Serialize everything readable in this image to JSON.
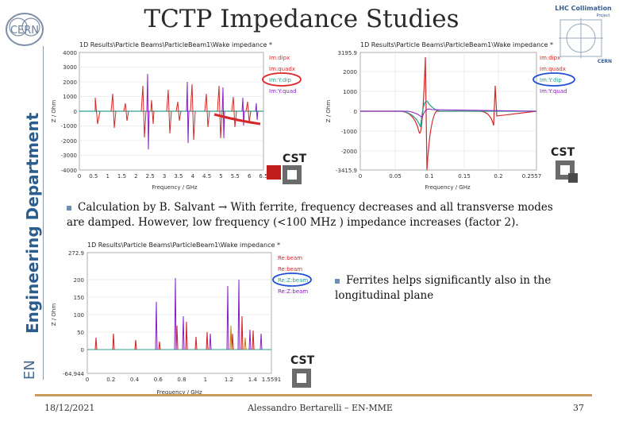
{
  "title": "TCTP Impedance Studies",
  "side_label": "Engineering Department",
  "en_label": "EN",
  "logos": {
    "cern": "CERN",
    "lhc_line1": "LHC Collimation",
    "lhc_line2": "Project",
    "lhc_small": "CERN"
  },
  "plot1": {
    "header": "1D Results\\Particle Beams\\ParticleBeam1\\Wake impedance *",
    "y_ticks": [
      "4000",
      "3000",
      "2000",
      "1000",
      "0",
      "-1000",
      "-2000",
      "-3000",
      "-4000"
    ],
    "x_ticks": [
      "0",
      "0.5",
      "1",
      "1.5",
      "2",
      "2.5",
      "3",
      "3.5",
      "4",
      "4.5",
      "5",
      "5.5",
      "6",
      "6.5"
    ],
    "ylabel": "Z / Ohm",
    "xlabel": "Frequency / GHz",
    "legend": [
      "Im:dipx",
      "Im:quadx",
      "Im:Y:dip",
      "Im:Y:quad"
    ],
    "cst": "CST"
  },
  "plot2": {
    "header": "1D Results\\Particle Beams\\ParticleBeam1\\Wake impedance *",
    "y_ticks": [
      "3195.9",
      "2000",
      "1000",
      "0",
      "-1000",
      "-2000",
      "-3415.9"
    ],
    "x_ticks": [
      "0",
      "0.05",
      "0.1",
      "0.15",
      "0.2",
      "0.2557"
    ],
    "ylabel": "Z / Ohm",
    "xlabel": "Frequency / GHz",
    "legend": [
      "Im:dipx",
      "Im:quadx",
      "Im:Y:dip",
      "Im:Y:quad"
    ],
    "cst": "CST"
  },
  "plot3": {
    "header": "1D Results\\Particle Beams\\ParticleBeam1\\Wake impedance *",
    "y_ticks": [
      "272.9",
      "200",
      "150",
      "100",
      "50",
      "0",
      "-64.944"
    ],
    "x_ticks": [
      "0",
      "0.2",
      "0.4",
      "0.6",
      "0.8",
      "1",
      "1.2",
      "1.4",
      "1.5591"
    ],
    "ylabel": "Z / Ohm",
    "xlabel": "Frequency / GHz",
    "legend": [
      "Re:beam",
      "Re:beam",
      "Re:Z:beam",
      "Re:Z:beam"
    ],
    "cst": "CST"
  },
  "bullet1": "Calculation by B. Salvant → With ferrite, frequency decreases and all transverse modes are damped. However, low frequency (<100 MHz ) impedance increases (factor 2).",
  "bullet2": "Ferrites helps significantly also in the longitudinal plane",
  "footer": {
    "date": "18/12/2021",
    "author": "Alessandro Bertarelli – EN-MME",
    "page": "37"
  }
}
